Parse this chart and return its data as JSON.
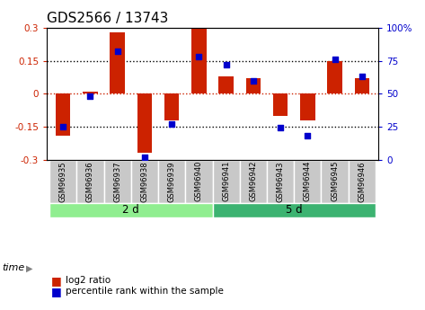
{
  "title": "GDS2566 / 13743",
  "samples": [
    "GSM96935",
    "GSM96936",
    "GSM96937",
    "GSM96938",
    "GSM96939",
    "GSM96940",
    "GSM96941",
    "GSM96942",
    "GSM96943",
    "GSM96944",
    "GSM96945",
    "GSM96946"
  ],
  "log2_ratio": [
    -0.19,
    0.01,
    0.28,
    -0.27,
    -0.12,
    0.295,
    0.08,
    0.07,
    -0.1,
    -0.12,
    0.15,
    0.07
  ],
  "percentile": [
    25,
    48,
    82,
    2,
    27,
    78,
    72,
    60,
    24,
    18,
    76,
    63
  ],
  "ylim_left": [
    -0.3,
    0.3
  ],
  "ylim_right": [
    0,
    100
  ],
  "yticks_left": [
    -0.3,
    -0.15,
    0,
    0.15,
    0.3
  ],
  "yticks_right": [
    0,
    25,
    50,
    75,
    100
  ],
  "groups": [
    {
      "label": "2 d",
      "start": 0,
      "end": 6,
      "color": "#90EE90"
    },
    {
      "label": "5 d",
      "start": 6,
      "end": 12,
      "color": "#3CB371"
    }
  ],
  "bar_color": "#CC2200",
  "dot_color": "#0000CC",
  "bar_width": 0.55,
  "time_label": "time",
  "legend_bar_label": "log2 ratio",
  "legend_dot_label": "percentile rank within the sample",
  "background_color": "white",
  "title_fontsize": 11,
  "tick_fontsize": 7.5,
  "label_color_left": "#CC2200",
  "label_color_right": "#0000CC",
  "xlabel_bg": "#C8C8C8",
  "xlabel_border": "white"
}
